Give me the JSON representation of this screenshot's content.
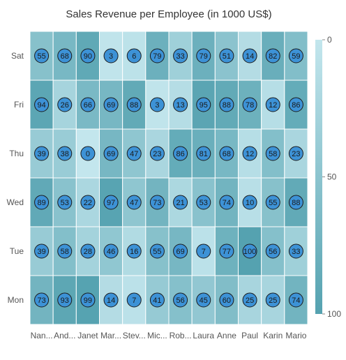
{
  "chart_data": {
    "type": "heatmap",
    "title": "Sales Revenue per Employee (in 1000 US$)",
    "x_categories": [
      "Nan...",
      "And...",
      "Janet",
      "Mar...",
      "Stev...",
      "Mic...",
      "Rob...",
      "Laura",
      "Anne",
      "Paul",
      "Karin",
      "Mario"
    ],
    "y_categories": [
      "Mon",
      "Tue",
      "Wed",
      "Thu",
      "Fri",
      "Sat"
    ],
    "rows": [
      {
        "label": "Sat",
        "values": [
          55,
          68,
          90,
          3,
          6,
          79,
          33,
          79,
          51,
          14,
          82,
          59
        ]
      },
      {
        "label": "Fri",
        "values": [
          94,
          26,
          66,
          69,
          88,
          3,
          13,
          95,
          88,
          78,
          12,
          86
        ]
      },
      {
        "label": "Thu",
        "values": [
          39,
          38,
          0,
          69,
          47,
          23,
          86,
          81,
          68,
          12,
          58,
          23
        ]
      },
      {
        "label": "Wed",
        "values": [
          89,
          53,
          22,
          97,
          47,
          73,
          21,
          53,
          74,
          10,
          55,
          88
        ]
      },
      {
        "label": "Tue",
        "values": [
          39,
          58,
          28,
          46,
          16,
          55,
          69,
          7,
          77,
          100,
          56,
          33
        ]
      },
      {
        "label": "Mon",
        "values": [
          73,
          93,
          99,
          14,
          7,
          41,
          56,
          45,
          60,
          25,
          25,
          74
        ]
      }
    ],
    "color_scale": {
      "min": 0,
      "max": 100,
      "min_color": "#c3e6ed",
      "max_color": "#55a2b0",
      "ticks": [
        0,
        50,
        100
      ]
    },
    "marker_color": "#3d92d6",
    "legend_position": "right"
  }
}
